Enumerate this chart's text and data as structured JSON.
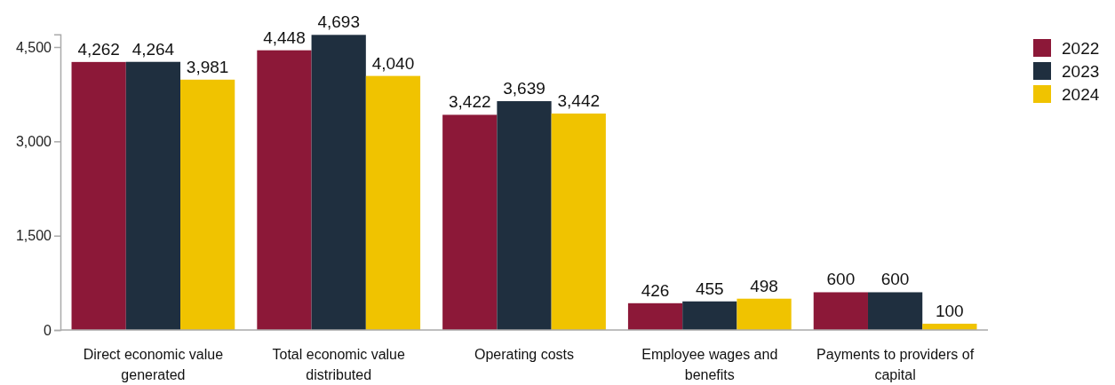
{
  "chart_data": {
    "type": "bar",
    "categories": [
      "Direct economic value generated",
      "Total economic value distributed",
      "Operating costs",
      "Employee wages and benefits",
      "Payments to providers of capital"
    ],
    "series": [
      {
        "name": "2022",
        "color": "#8c1838",
        "values": [
          4262,
          4448,
          3422,
          426,
          600
        ],
        "value_labels": [
          "4,262",
          "4,448",
          "3,422",
          "426",
          "600"
        ]
      },
      {
        "name": "2023",
        "color": "#1f2f3f",
        "values": [
          4264,
          4693,
          3639,
          455,
          600
        ],
        "value_labels": [
          "4,264",
          "4,693",
          "3,639",
          "455",
          "600"
        ]
      },
      {
        "name": "2024",
        "color": "#f0c300",
        "values": [
          3981,
          4040,
          3442,
          498,
          100
        ],
        "value_labels": [
          "3,981",
          "4,040",
          "3,442",
          "498",
          "100"
        ]
      }
    ],
    "ylim": [
      0,
      4700
    ],
    "yticks": [
      0,
      {
        "value": 1500,
        "label": "1,500"
      },
      {
        "value": 3000,
        "label": "3,000"
      },
      {
        "value": 4500,
        "label": "4,500"
      }
    ],
    "legend": "top right",
    "grid": false
  }
}
